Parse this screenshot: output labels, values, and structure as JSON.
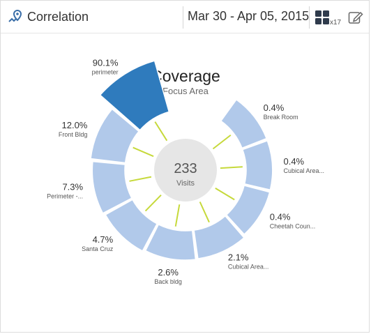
{
  "header": {
    "title": "Correlation",
    "date_range": "Mar 30 - Apr 05, 2015",
    "grid_count": "x17",
    "icons": {
      "title": "map-pin-analytics-icon",
      "grid": "grid-icon",
      "edit": "edit-icon"
    }
  },
  "chart_data": {
    "type": "pie",
    "style": "radial-donut",
    "title": "Coverage",
    "subtitle": "Focus Area",
    "center_value": "233",
    "center_label": "Visits",
    "slices": [
      {
        "label": "Break Room",
        "value": 0.4,
        "value_label": "0.4%"
      },
      {
        "label": "Cubical Area...",
        "value": 0.4,
        "value_label": "0.4%"
      },
      {
        "label": "Cheetah Coun...",
        "value": 0.4,
        "value_label": "0.4%"
      },
      {
        "label": "Cubical Area...",
        "value": 2.1,
        "value_label": "2.1%"
      },
      {
        "label": "Back bldg",
        "value": 2.6,
        "value_label": "2.6%"
      },
      {
        "label": "Santa Cruz",
        "value": 4.7,
        "value_label": "4.7%"
      },
      {
        "label": "Perimeter -...",
        "value": 7.3,
        "value_label": "7.3%"
      },
      {
        "label": "Front Bldg",
        "value": 12.0,
        "value_label": "12.0%"
      },
      {
        "label": "perimeter",
        "value": 90.1,
        "value_label": "90.1%"
      }
    ],
    "colors": {
      "highlight": "#2f7bbd",
      "normal": "#b1c9ea",
      "spoke": "#c6d93a",
      "center": "#e6e6e6"
    }
  }
}
